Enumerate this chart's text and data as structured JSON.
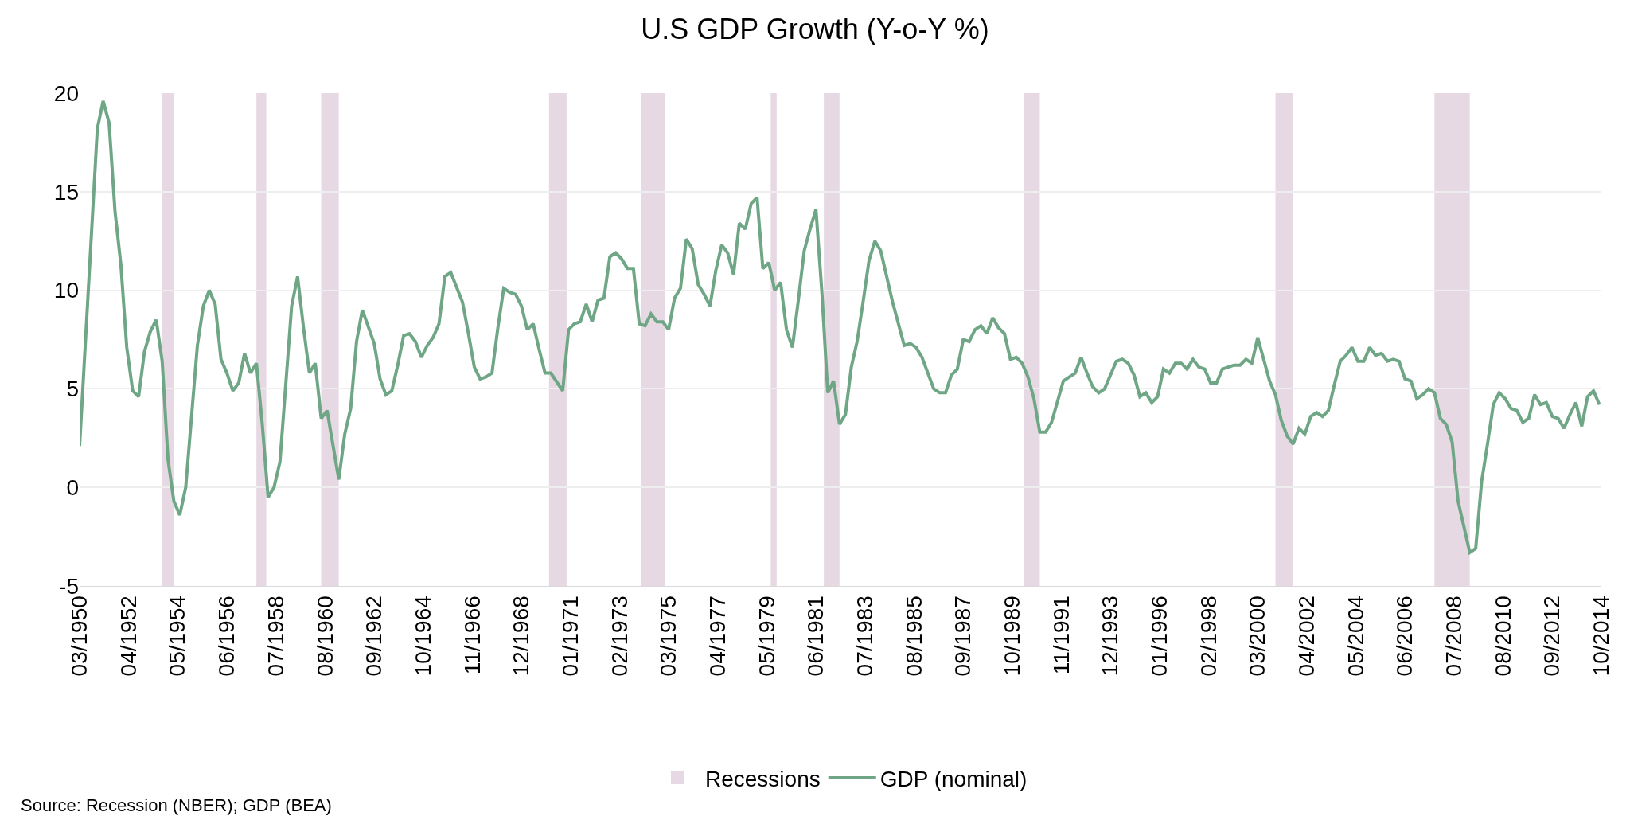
{
  "chart_data": {
    "type": "line",
    "title": "U.S GDP Growth (Y-o-Y %)",
    "x": [
      "1950-03",
      "1950-12",
      "1951-03",
      "1951-06",
      "1951-09",
      "1951-12",
      "1952-03",
      "1952-06",
      "1952-09",
      "1952-12",
      "1953-03",
      "1953-06",
      "1953-09",
      "1953-12",
      "1954-03",
      "1954-06",
      "1954-09",
      "1955-03",
      "1955-06",
      "1955-09",
      "1955-12",
      "1956-03",
      "1956-06",
      "1956-09",
      "1956-12",
      "1957-03",
      "1957-06",
      "1957-09",
      "1957-12",
      "1958-03",
      "1958-06",
      "1958-09",
      "1959-03",
      "1959-06",
      "1959-09",
      "1959-12",
      "1960-03",
      "1960-06",
      "1960-09",
      "1961-03",
      "1961-06",
      "1961-09",
      "1961-12",
      "1962-03",
      "1962-09",
      "1962-12",
      "1963-03",
      "1963-06",
      "1963-09",
      "1963-12",
      "1964-03",
      "1964-06",
      "1964-09",
      "1964-12",
      "1965-03",
      "1965-06",
      "1965-09",
      "1965-12",
      "1966-06",
      "1966-09",
      "1966-12",
      "1967-03",
      "1967-06",
      "1967-09",
      "1967-12",
      "1968-03",
      "1968-06",
      "1968-09",
      "1968-12",
      "1969-03",
      "1969-06",
      "1969-09",
      "1969-12",
      "1970-03",
      "1970-09",
      "1970-12",
      "1971-03",
      "1971-06",
      "1971-09",
      "1971-12",
      "1972-03",
      "1972-06",
      "1972-09",
      "1972-12",
      "1973-03",
      "1973-06",
      "1973-09",
      "1973-12",
      "1974-03",
      "1974-06",
      "1974-09",
      "1974-12",
      "1975-03",
      "1975-06",
      "1975-09",
      "1975-12",
      "1976-03",
      "1976-06",
      "1976-09",
      "1976-12",
      "1977-03",
      "1977-06",
      "1977-09",
      "1977-12",
      "1978-03",
      "1978-06",
      "1978-09",
      "1978-12",
      "1979-03",
      "1979-06",
      "1979-09",
      "1979-12",
      "1980-03",
      "1980-06",
      "1980-09",
      "1980-12",
      "1981-03",
      "1981-06",
      "1981-09",
      "1981-12",
      "1982-03",
      "1982-06",
      "1982-09",
      "1982-12",
      "1983-03",
      "1983-06",
      "1983-09",
      "1983-12",
      "1984-03",
      "1984-09",
      "1985-03",
      "1985-06",
      "1985-09",
      "1985-12",
      "1986-06",
      "1986-09",
      "1986-12",
      "1987-03",
      "1987-06",
      "1987-09",
      "1987-12",
      "1988-03",
      "1988-06",
      "1988-09",
      "1988-12",
      "1989-03",
      "1989-06",
      "1989-09",
      "1989-12",
      "1990-03",
      "1990-06",
      "1990-09",
      "1990-12",
      "1991-03",
      "1991-06",
      "1991-12",
      "1992-03",
      "1992-06",
      "1992-09",
      "1992-12",
      "1993-03",
      "1993-06",
      "1993-09",
      "1994-03",
      "1994-06",
      "1994-09",
      "1994-12",
      "1995-03",
      "1995-06",
      "1995-09",
      "1995-12",
      "1996-03",
      "1996-06",
      "1996-09",
      "1996-12",
      "1997-03",
      "1997-06",
      "1997-09",
      "1997-12",
      "1998-03",
      "1998-06",
      "1998-09",
      "1998-12",
      "1999-03",
      "1999-06",
      "1999-09",
      "1999-12",
      "2000-03",
      "2000-06",
      "2000-09",
      "2000-12",
      "2001-03",
      "2001-06",
      "2001-09",
      "2001-12",
      "2002-03",
      "2002-06",
      "2002-09",
      "2002-12",
      "2003-03",
      "2003-06",
      "2003-09",
      "2003-12",
      "2004-03",
      "2004-06",
      "2004-09",
      "2004-12",
      "2005-03",
      "2005-06",
      "2005-09",
      "2005-12",
      "2006-03",
      "2006-06",
      "2006-09",
      "2006-12",
      "2007-03",
      "2007-06",
      "2007-09",
      "2007-12",
      "2008-03",
      "2008-06",
      "2008-09",
      "2008-12",
      "2009-03",
      "2009-06",
      "2009-09",
      "2009-12",
      "2010-03",
      "2010-06",
      "2010-09",
      "2010-12",
      "2011-03",
      "2011-06",
      "2011-09",
      "2011-12",
      "2012-03",
      "2012-06",
      "2012-09",
      "2012-12",
      "2013-03",
      "2013-06",
      "2013-09",
      "2013-12",
      "2014-03",
      "2014-06",
      "2014-09"
    ],
    "series": [
      {
        "name": "GDP (nominal)",
        "color": "#6fa686",
        "values": [
          2.1,
          18.2,
          19.6,
          18.5,
          14.0,
          11.3,
          7.1,
          4.9,
          4.6,
          6.9,
          7.9,
          8.5,
          6.4,
          1.4,
          -0.7,
          -1.4,
          0.0,
          7.2,
          9.2,
          10.0,
          9.3,
          6.5,
          5.8,
          4.9,
          5.3,
          6.8,
          5.8,
          6.3,
          3.2,
          -0.5,
          0.0,
          1.3,
          9.2,
          10.7,
          8.1,
          5.8,
          6.3,
          3.5,
          3.9,
          0.4,
          2.7,
          4.0,
          7.4,
          9.0,
          7.3,
          5.5,
          4.7,
          4.9,
          6.2,
          7.7,
          7.8,
          7.4,
          6.6,
          7.2,
          7.6,
          8.3,
          10.7,
          10.9,
          9.4,
          7.8,
          6.1,
          5.5,
          5.6,
          5.8,
          8.1,
          10.1,
          9.9,
          9.8,
          9.2,
          8.0,
          8.3,
          7.0,
          5.8,
          5.8,
          4.9,
          8.0,
          8.3,
          8.4,
          9.3,
          8.4,
          9.5,
          9.6,
          11.7,
          11.9,
          11.6,
          11.1,
          11.1,
          8.3,
          8.2,
          8.8,
          8.4,
          8.4,
          8.0,
          9.6,
          10.1,
          12.6,
          12.1,
          10.3,
          9.8,
          9.2,
          11.0,
          12.3,
          11.9,
          10.8,
          13.4,
          13.1,
          14.4,
          14.7,
          11.1,
          11.4,
          10.0,
          10.4,
          8.0,
          7.1,
          9.5,
          12.0,
          13.1,
          14.1,
          9.9,
          4.8,
          5.4,
          3.2,
          3.7,
          6.1,
          7.4,
          9.4,
          11.5,
          12.5,
          12.0,
          9.4,
          7.2,
          7.3,
          7.1,
          6.6,
          5.0,
          4.8,
          4.8,
          5.7,
          6.0,
          7.5,
          7.4,
          8.0,
          8.2,
          7.8,
          8.6,
          8.1,
          7.8,
          6.5,
          6.6,
          6.3,
          5.6,
          4.5,
          2.8,
          2.8,
          3.3,
          5.4,
          5.6,
          5.8,
          6.6,
          5.8,
          5.1,
          4.8,
          5.0,
          6.4,
          6.5,
          6.3,
          5.7,
          4.6,
          4.8,
          4.3,
          4.6,
          6.0,
          5.8,
          6.3,
          6.3,
          6.0,
          6.5,
          6.1,
          6.0,
          5.3,
          5.3,
          6.0,
          6.1,
          6.2,
          6.2,
          6.5,
          6.3,
          7.6,
          6.5,
          5.4,
          4.7,
          3.4,
          2.6,
          2.2,
          3.0,
          2.7,
          3.6,
          3.8,
          3.6,
          3.9,
          5.2,
          6.4,
          6.7,
          7.1,
          6.4,
          6.4,
          7.1,
          6.7,
          6.8,
          6.4,
          6.5,
          6.4,
          5.5,
          5.4,
          4.5,
          4.7,
          5.0,
          4.8,
          3.5,
          3.2,
          2.3,
          -0.7,
          -2.0,
          -3.3,
          -3.1,
          0.3,
          2.2,
          4.2,
          4.8,
          4.5,
          4.0,
          3.9,
          3.3,
          3.5,
          4.7,
          4.2,
          4.3,
          3.6,
          3.5,
          3.0,
          3.7,
          4.3,
          3.1,
          4.6,
          4.9,
          4.2
        ]
      }
    ],
    "xlim": [
      "1950-03",
      "2014-10"
    ],
    "xticks": [
      {
        "value": "1950-03",
        "label": "03/1950"
      },
      {
        "value": "1952-04",
        "label": "04/1952"
      },
      {
        "value": "1954-05",
        "label": "05/1954"
      },
      {
        "value": "1956-06",
        "label": "06/1956"
      },
      {
        "value": "1958-07",
        "label": "07/1958"
      },
      {
        "value": "1960-08",
        "label": "08/1960"
      },
      {
        "value": "1962-09",
        "label": "09/1962"
      },
      {
        "value": "1964-10",
        "label": "10/1964"
      },
      {
        "value": "1966-11",
        "label": "11/1966"
      },
      {
        "value": "1968-12",
        "label": "12/1968"
      },
      {
        "value": "1971-01",
        "label": "01/1971"
      },
      {
        "value": "1973-02",
        "label": "02/1973"
      },
      {
        "value": "1975-03",
        "label": "03/1975"
      },
      {
        "value": "1977-04",
        "label": "04/1977"
      },
      {
        "value": "1979-05",
        "label": "05/1979"
      },
      {
        "value": "1981-06",
        "label": "06/1981"
      },
      {
        "value": "1983-07",
        "label": "07/1983"
      },
      {
        "value": "1985-08",
        "label": "08/1985"
      },
      {
        "value": "1987-09",
        "label": "09/1987"
      },
      {
        "value": "1989-10",
        "label": "10/1989"
      },
      {
        "value": "1991-11",
        "label": "11/1991"
      },
      {
        "value": "1993-12",
        "label": "12/1993"
      },
      {
        "value": "1996-01",
        "label": "01/1996"
      },
      {
        "value": "1998-02",
        "label": "02/1998"
      },
      {
        "value": "2000-03",
        "label": "03/2000"
      },
      {
        "value": "2002-04",
        "label": "04/2002"
      },
      {
        "value": "2004-05",
        "label": "05/2004"
      },
      {
        "value": "2006-06",
        "label": "06/2006"
      },
      {
        "value": "2008-07",
        "label": "07/2008"
      },
      {
        "value": "2010-08",
        "label": "08/2010"
      },
      {
        "value": "2012-09",
        "label": "09/2012"
      },
      {
        "value": "2014-10",
        "label": "10/2014"
      }
    ],
    "ylim": [
      -5,
      20
    ],
    "yticks": [
      -5,
      0,
      5,
      10,
      15,
      20
    ],
    "bands": [
      {
        "axis": "x",
        "from": "1953-09",
        "to": "1954-03",
        "label": "Recessions",
        "color": "#e6d9e3"
      },
      {
        "axis": "x",
        "from": "1957-09",
        "to": "1958-02",
        "color": "#e6d9e3"
      },
      {
        "axis": "x",
        "from": "1960-06",
        "to": "1961-03",
        "color": "#e6d9e3"
      },
      {
        "axis": "x",
        "from": "1970-02",
        "to": "1970-11",
        "color": "#e6d9e3"
      },
      {
        "axis": "x",
        "from": "1974-01",
        "to": "1975-01",
        "color": "#e6d9e3"
      },
      {
        "axis": "x",
        "from": "1979-07",
        "to": "1979-10",
        "color": "#e6d9e3"
      },
      {
        "axis": "x",
        "from": "1981-10",
        "to": "1982-06",
        "color": "#e6d9e3"
      },
      {
        "axis": "x",
        "from": "1990-04",
        "to": "1990-12",
        "color": "#e6d9e3"
      },
      {
        "axis": "x",
        "from": "2000-12",
        "to": "2001-09",
        "color": "#e6d9e3"
      },
      {
        "axis": "x",
        "from": "2007-09",
        "to": "2009-03",
        "color": "#e6d9e3"
      }
    ],
    "annotations": [
      "Source: Recession (NBER); GDP (BEA)"
    ],
    "grid": "y",
    "legend": "bottom",
    "line_style": "solid",
    "marker": "none"
  }
}
